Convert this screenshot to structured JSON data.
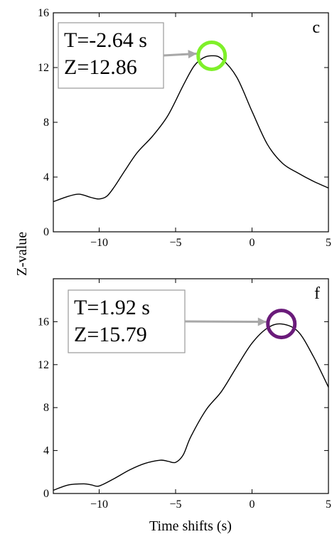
{
  "ylabel": "Z-value",
  "xlabel": "Time shifts (s)",
  "chart_data": [
    {
      "type": "line",
      "panel_label": "c",
      "xlim": [
        -13,
        5
      ],
      "ylim": [
        0,
        16
      ],
      "xticks": [
        -10,
        -5,
        0,
        5
      ],
      "yticks": [
        0,
        4,
        8,
        12,
        16
      ],
      "series": [
        {
          "x": [
            -13,
            -12,
            -11.3,
            -10.5,
            -10,
            -9.5,
            -9,
            -8.3,
            -7.5,
            -6.5,
            -5.5,
            -4.5,
            -3.8,
            -3.2,
            -2.64,
            -2,
            -1,
            0,
            1,
            2,
            3,
            4,
            5
          ],
          "y": [
            2.2,
            2.6,
            2.75,
            2.5,
            2.4,
            2.6,
            3.3,
            4.5,
            5.8,
            7.0,
            8.5,
            10.7,
            12.1,
            12.7,
            12.86,
            12.65,
            11.3,
            8.8,
            6.4,
            5.0,
            4.3,
            3.7,
            3.2
          ],
          "color": "#000000"
        }
      ],
      "annotations": [
        {
          "lines": [
            "T=-2.64 s",
            "Z=12.86"
          ],
          "x": -2.64,
          "y": 12.86,
          "marker_color": "#7ff02a"
        }
      ],
      "grid": false
    },
    {
      "type": "line",
      "panel_label": "f",
      "xlim": [
        -13,
        5
      ],
      "ylim": [
        0,
        20
      ],
      "xticks": [
        -10,
        -5,
        0,
        5
      ],
      "yticks": [
        0,
        4,
        8,
        12,
        16
      ],
      "series": [
        {
          "x": [
            -13,
            -12,
            -11,
            -10.5,
            -10,
            -9,
            -8,
            -7,
            -6,
            -5.5,
            -5,
            -4.5,
            -4,
            -3,
            -2,
            -1,
            0,
            1,
            1.92,
            3,
            4,
            5
          ],
          "y": [
            0.3,
            0.8,
            0.9,
            0.8,
            0.7,
            1.4,
            2.2,
            2.8,
            3.1,
            3.0,
            2.9,
            3.6,
            5.3,
            7.8,
            9.5,
            11.8,
            14.0,
            15.4,
            15.79,
            15.1,
            12.8,
            9.9
          ],
          "color": "#000000"
        }
      ],
      "annotations": [
        {
          "lines": [
            "T=1.92 s",
            "Z=15.79"
          ],
          "x": 1.92,
          "y": 15.79,
          "marker_color": "#6a1b7a"
        }
      ],
      "grid": false
    }
  ]
}
